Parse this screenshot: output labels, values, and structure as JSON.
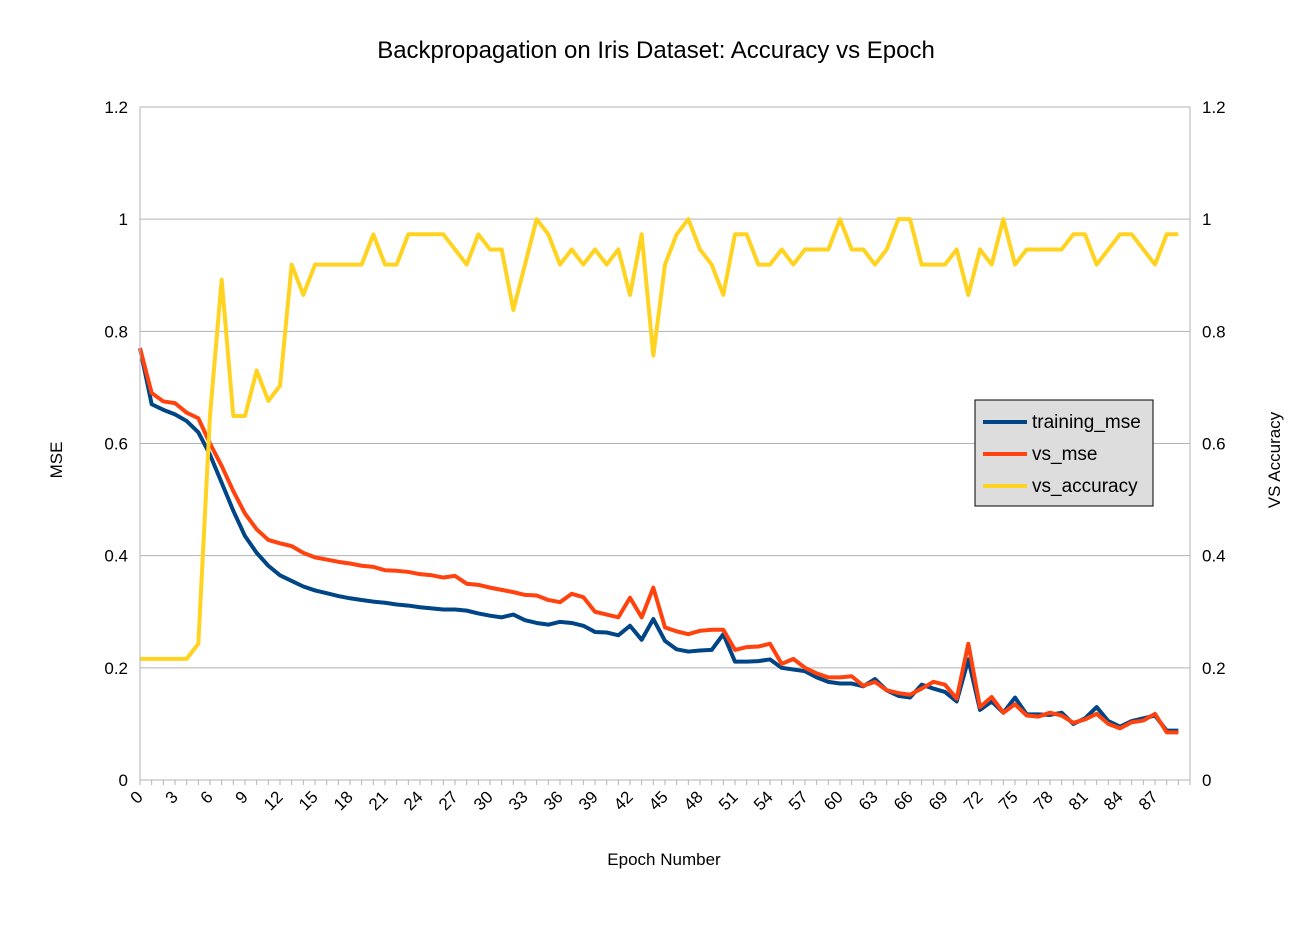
{
  "chart_data": {
    "type": "line",
    "title": "Backpropagation on Iris Dataset: Accuracy vs Epoch",
    "xlabel": "Epoch Number",
    "ylabel": "MSE",
    "y2label": "VS Accuracy",
    "ylim": [
      0,
      1.2
    ],
    "y2lim": [
      0,
      1.2
    ],
    "yticks": [
      "0",
      "0.2",
      "0.4",
      "0.6",
      "0.8",
      "1",
      "1.2"
    ],
    "y2ticks": [
      "0",
      "0.2",
      "0.4",
      "0.6",
      "0.8",
      "1",
      "1.2"
    ],
    "xticks": [
      "0",
      "3",
      "6",
      "9",
      "12",
      "15",
      "18",
      "21",
      "24",
      "27",
      "30",
      "33",
      "36",
      "39",
      "42",
      "45",
      "48",
      "51",
      "54",
      "57",
      "60",
      "63",
      "66",
      "69",
      "72",
      "75",
      "78",
      "81",
      "84",
      "87"
    ],
    "grid": "horizontal",
    "legend_position": "right",
    "colors": {
      "training_mse": "#004586",
      "vs_mse": "#ff420e",
      "vs_accuracy": "#ffd320"
    },
    "series": [
      {
        "name": "training_mse",
        "axis": "left",
        "values": [
          0.77,
          0.67,
          0.66,
          0.652,
          0.64,
          0.62,
          0.58,
          0.53,
          0.48,
          0.435,
          0.405,
          0.382,
          0.365,
          0.355,
          0.345,
          0.338,
          0.333,
          0.328,
          0.324,
          0.321,
          0.318,
          0.316,
          0.313,
          0.311,
          0.308,
          0.306,
          0.304,
          0.304,
          0.302,
          0.297,
          0.293,
          0.29,
          0.295,
          0.285,
          0.28,
          0.277,
          0.282,
          0.28,
          0.275,
          0.264,
          0.263,
          0.258,
          0.275,
          0.25,
          0.287,
          0.248,
          0.233,
          0.229,
          0.231,
          0.232,
          0.26,
          0.211,
          0.211,
          0.212,
          0.215,
          0.2,
          0.197,
          0.194,
          0.183,
          0.175,
          0.172,
          0.172,
          0.167,
          0.18,
          0.16,
          0.15,
          0.147,
          0.17,
          0.163,
          0.157,
          0.14,
          0.215,
          0.125,
          0.14,
          0.12,
          0.147,
          0.117,
          0.117,
          0.116,
          0.12,
          0.1,
          0.11,
          0.13,
          0.105,
          0.095,
          0.105,
          0.11,
          0.115,
          0.088,
          0.088
        ]
      },
      {
        "name": "vs_mse",
        "axis": "left",
        "values": [
          0.77,
          0.69,
          0.675,
          0.672,
          0.655,
          0.645,
          0.6,
          0.56,
          0.515,
          0.475,
          0.447,
          0.428,
          0.422,
          0.417,
          0.405,
          0.397,
          0.393,
          0.389,
          0.386,
          0.382,
          0.38,
          0.374,
          0.373,
          0.371,
          0.367,
          0.365,
          0.361,
          0.364,
          0.35,
          0.348,
          0.343,
          0.339,
          0.335,
          0.33,
          0.329,
          0.321,
          0.317,
          0.332,
          0.326,
          0.3,
          0.295,
          0.29,
          0.325,
          0.29,
          0.343,
          0.272,
          0.265,
          0.26,
          0.266,
          0.268,
          0.268,
          0.232,
          0.237,
          0.238,
          0.243,
          0.207,
          0.216,
          0.2,
          0.19,
          0.183,
          0.183,
          0.185,
          0.168,
          0.175,
          0.16,
          0.155,
          0.152,
          0.163,
          0.175,
          0.17,
          0.145,
          0.243,
          0.13,
          0.148,
          0.12,
          0.135,
          0.115,
          0.113,
          0.12,
          0.115,
          0.102,
          0.108,
          0.118,
          0.1,
          0.092,
          0.103,
          0.106,
          0.118,
          0.085,
          0.085
        ]
      },
      {
        "name": "vs_accuracy",
        "axis": "right",
        "values": [
          0.216,
          0.216,
          0.216,
          0.216,
          0.216,
          0.243,
          0.65,
          0.892,
          0.649,
          0.649,
          0.73,
          0.676,
          0.703,
          0.919,
          0.865,
          0.919,
          0.919,
          0.919,
          0.919,
          0.919,
          0.973,
          0.919,
          0.919,
          0.973,
          0.973,
          0.973,
          0.973,
          0.946,
          0.919,
          0.973,
          0.946,
          0.946,
          0.838,
          0.919,
          1.0,
          0.973,
          0.919,
          0.946,
          0.919,
          0.946,
          0.919,
          0.946,
          0.865,
          0.973,
          0.757,
          0.919,
          0.973,
          1.0,
          0.946,
          0.919,
          0.865,
          0.973,
          0.973,
          0.919,
          0.919,
          0.946,
          0.919,
          0.946,
          0.946,
          0.946,
          1.0,
          0.946,
          0.946,
          0.919,
          0.946,
          1.0,
          1.0,
          0.919,
          0.919,
          0.919,
          0.946,
          0.865,
          0.946,
          0.919,
          1.0,
          0.919,
          0.946,
          0.946,
          0.946,
          0.946,
          0.973,
          0.973,
          0.919,
          0.946,
          0.973,
          0.973,
          0.946,
          0.919,
          0.973,
          0.973
        ]
      }
    ]
  }
}
